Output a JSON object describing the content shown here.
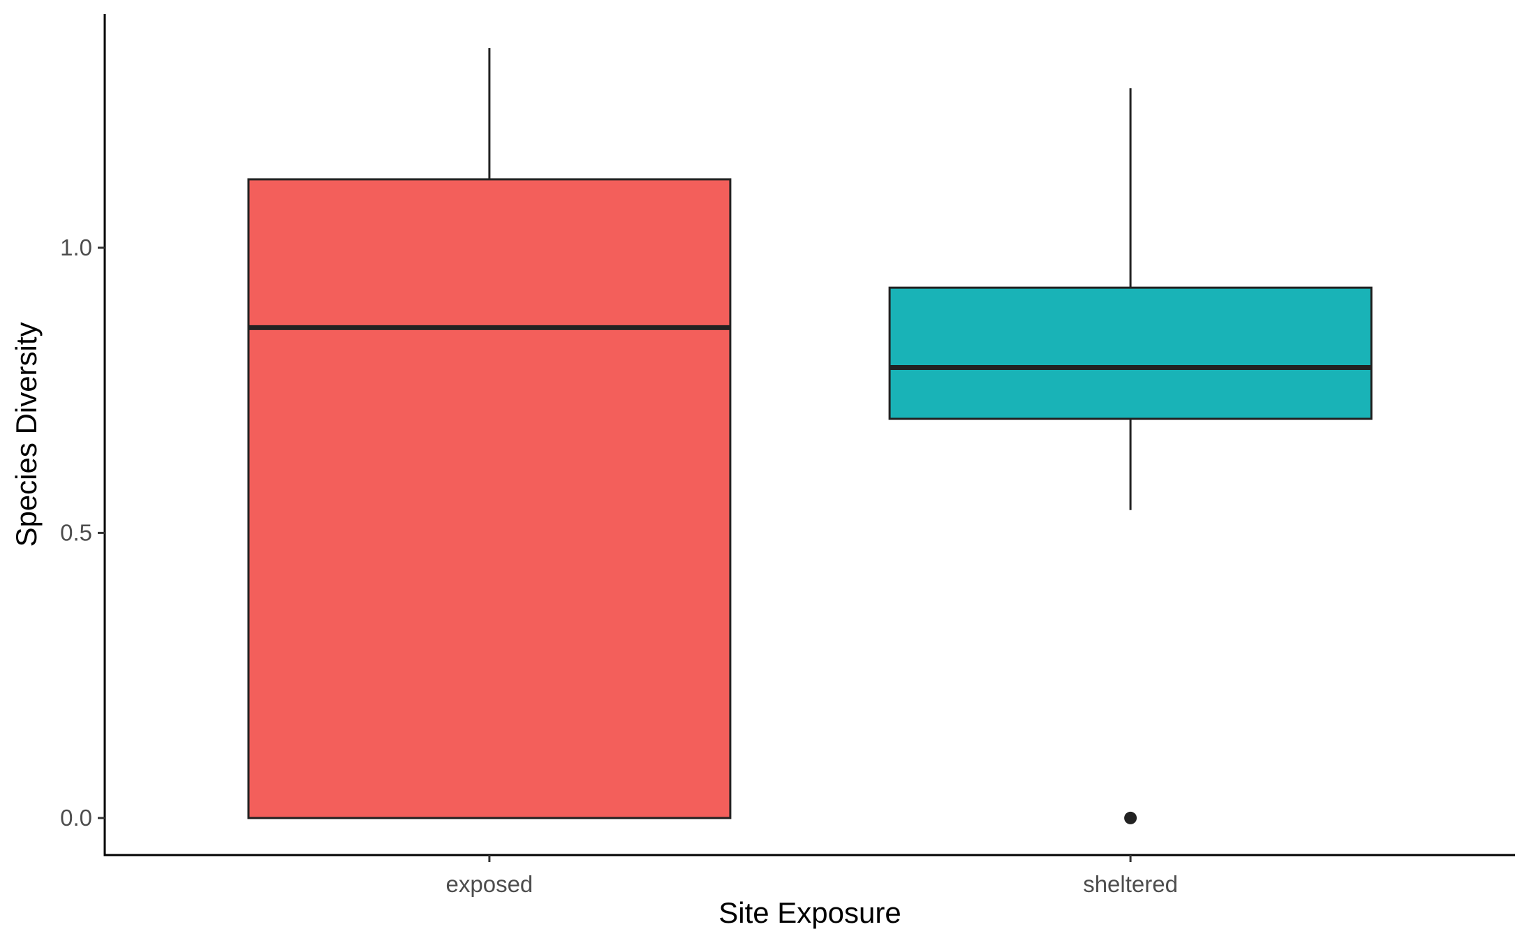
{
  "chart_data": {
    "type": "boxplot",
    "title": "",
    "xlabel": "Site Exposure",
    "ylabel": "Species Diversity",
    "categories": [
      "exposed",
      "sheltered"
    ],
    "boxes": [
      {
        "category": "exposed",
        "min": 0.0,
        "q1": 0.0,
        "median": 0.86,
        "q3": 1.12,
        "max": 1.35,
        "outliers": [],
        "color": "#F35F5B"
      },
      {
        "category": "sheltered",
        "min": 0.54,
        "q1": 0.7,
        "median": 0.79,
        "q3": 0.93,
        "max": 1.28,
        "outliers": [
          0.0
        ],
        "color": "#19B3B7"
      }
    ],
    "yticks": [
      0.0,
      0.5,
      1.0
    ],
    "ytick_labels": [
      "0.0",
      "0.5",
      "1.0"
    ],
    "ylim": [
      -0.065,
      1.41
    ],
    "grid": false,
    "legend": "none"
  }
}
